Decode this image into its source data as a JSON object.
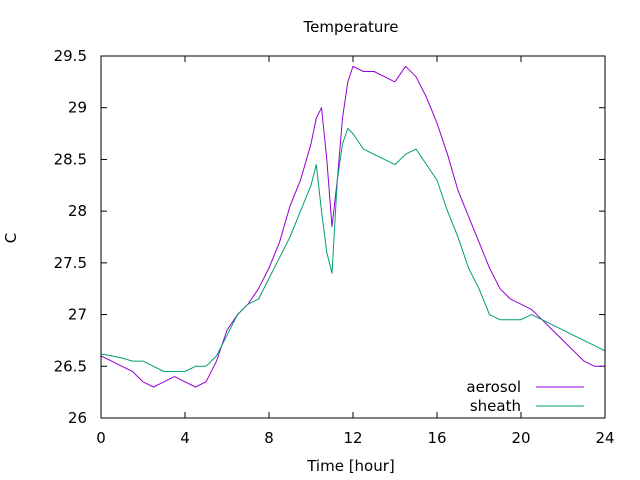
{
  "chart_data": {
    "type": "line",
    "title": "Temperature",
    "xlabel": "Time [hour]",
    "ylabel": "C",
    "xlim": [
      0,
      24
    ],
    "ylim": [
      26,
      29.5
    ],
    "xticks": [
      0,
      4,
      8,
      12,
      16,
      20,
      24
    ],
    "yticks": [
      26,
      26.5,
      27,
      27.5,
      28,
      28.5,
      29,
      29.5
    ],
    "xtick_labels": [
      "0",
      "4",
      "8",
      "12",
      "16",
      "20",
      "24"
    ],
    "ytick_labels": [
      "26",
      "26.5",
      "27",
      "27.5",
      "28",
      "28.5",
      "29",
      "29.5"
    ],
    "grid": false,
    "legend": "bottom-right",
    "series": [
      {
        "name": "aerosol",
        "color": "#9400d3",
        "x": [
          0,
          0.5,
          1,
          1.5,
          2,
          2.5,
          3,
          3.5,
          4,
          4.5,
          5,
          5.5,
          6,
          6.5,
          7,
          7.5,
          8,
          8.5,
          9,
          9.5,
          10,
          10.25,
          10.5,
          10.75,
          11,
          11.25,
          11.5,
          11.75,
          12,
          12.5,
          13,
          13.5,
          14,
          14.5,
          15,
          15.5,
          16,
          16.5,
          17,
          17.5,
          18,
          18.5,
          19,
          19.5,
          20,
          20.5,
          21,
          21.5,
          22,
          22.5,
          23,
          23.5,
          24
        ],
        "y": [
          26.6,
          26.55,
          26.5,
          26.45,
          26.35,
          26.3,
          26.35,
          26.4,
          26.35,
          26.3,
          26.35,
          26.55,
          26.85,
          27.0,
          27.1,
          27.25,
          27.45,
          27.7,
          28.05,
          28.3,
          28.65,
          28.9,
          29.0,
          28.5,
          27.85,
          28.3,
          28.9,
          29.25,
          29.4,
          29.35,
          29.35,
          29.3,
          29.25,
          29.4,
          29.3,
          29.1,
          28.85,
          28.55,
          28.2,
          27.95,
          27.7,
          27.45,
          27.25,
          27.15,
          27.1,
          27.05,
          26.95,
          26.85,
          26.75,
          26.65,
          26.55,
          26.5,
          26.5
        ]
      },
      {
        "name": "sheath",
        "color": "#009e73",
        "x": [
          0,
          0.5,
          1,
          1.5,
          2,
          2.5,
          3,
          3.5,
          4,
          4.5,
          5,
          5.5,
          6,
          6.5,
          7,
          7.5,
          8,
          8.5,
          9,
          9.5,
          10,
          10.25,
          10.5,
          10.75,
          11,
          11.25,
          11.5,
          11.75,
          12,
          12.5,
          13,
          13.5,
          14,
          14.5,
          15,
          15.5,
          16,
          16.5,
          17,
          17.5,
          18,
          18.5,
          19,
          19.5,
          20,
          20.5,
          21,
          21.5,
          22,
          22.5,
          23,
          23.5,
          24
        ],
        "y": [
          26.62,
          26.6,
          26.58,
          26.55,
          26.55,
          26.5,
          26.45,
          26.45,
          26.45,
          26.5,
          26.5,
          26.6,
          26.8,
          27.0,
          27.1,
          27.15,
          27.35,
          27.55,
          27.75,
          28.0,
          28.25,
          28.45,
          28.0,
          27.6,
          27.4,
          28.3,
          28.65,
          28.8,
          28.75,
          28.6,
          28.55,
          28.5,
          28.45,
          28.55,
          28.6,
          28.45,
          28.3,
          28.0,
          27.75,
          27.45,
          27.25,
          27.0,
          26.95,
          26.95,
          26.95,
          27.0,
          26.95,
          26.9,
          26.85,
          26.8,
          26.75,
          26.7,
          26.65
        ]
      }
    ]
  }
}
